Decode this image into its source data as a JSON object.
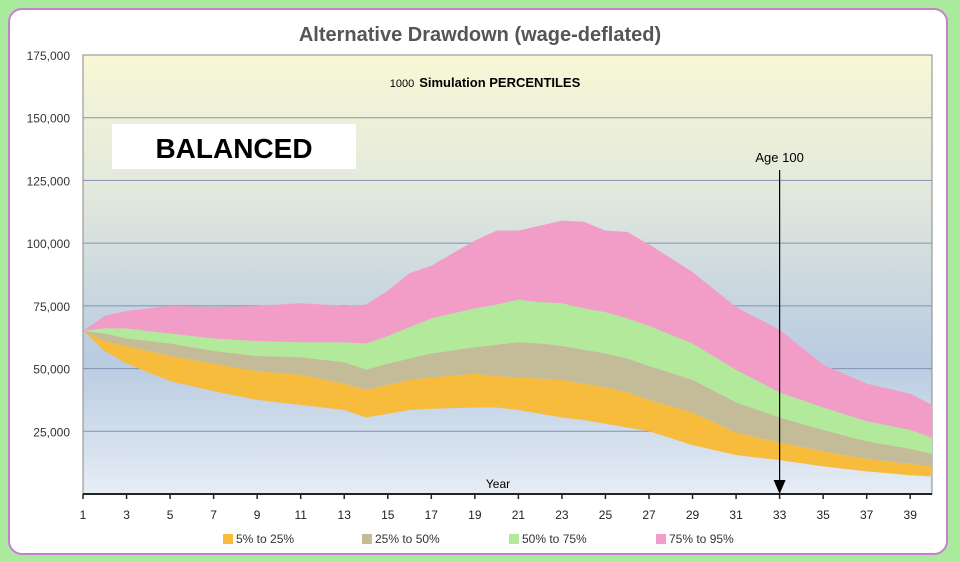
{
  "chart_data": {
    "type": "area",
    "title": "Alternative Drawdown (wage-deflated)",
    "subtitle_count": "1000",
    "subtitle": "Simulation  PERCENTILES",
    "label_box": "BALANCED",
    "xlabel": "Year",
    "ylabel": "",
    "xlim": [
      1,
      40
    ],
    "ylim": [
      0,
      175000
    ],
    "x_ticks": [
      1,
      3,
      5,
      7,
      9,
      11,
      13,
      15,
      17,
      19,
      21,
      23,
      25,
      27,
      29,
      31,
      33,
      35,
      37,
      39
    ],
    "y_ticks": [
      "25,000",
      "50,000",
      "75,000",
      "100,000",
      "125,000",
      "150,000",
      "175,000"
    ],
    "y_tick_values": [
      25000,
      50000,
      75000,
      100000,
      125000,
      150000,
      175000
    ],
    "grid": true,
    "legend_position": "bottom",
    "annotation": {
      "text": "Age 100",
      "x": 33
    },
    "x": [
      1,
      2,
      3,
      5,
      7,
      9,
      11,
      13,
      14,
      15,
      16,
      17,
      19,
      20,
      21,
      22,
      23,
      24,
      25,
      26,
      27,
      29,
      31,
      33,
      35,
      37,
      39,
      40
    ],
    "series": [
      {
        "name": "5% to 25%",
        "color": "#f7bc3c",
        "lower": [
          65000,
          57000,
          52000,
          45000,
          41000,
          37500,
          35500,
          33500,
          30500,
          32000,
          33500,
          34000,
          34500,
          34500,
          33500,
          32000,
          30500,
          29500,
          28000,
          26500,
          25000,
          19500,
          15500,
          13500,
          11000,
          9000,
          7500,
          7000
        ],
        "upper": [
          65000,
          61000,
          59000,
          55000,
          52000,
          49000,
          47500,
          44000,
          41500,
          43500,
          45500,
          46500,
          48000,
          47000,
          46500,
          46000,
          45500,
          44000,
          42500,
          40500,
          37500,
          32500,
          24500,
          20500,
          17000,
          14000,
          12000,
          11000
        ]
      },
      {
        "name": "25% to 50%",
        "color": "#c4bc98",
        "lower": [
          65000,
          61000,
          59000,
          55000,
          52000,
          49000,
          47500,
          44000,
          41500,
          43500,
          45500,
          46500,
          48000,
          47000,
          46500,
          46000,
          45500,
          44000,
          42500,
          40500,
          37500,
          32500,
          24500,
          20500,
          17000,
          14000,
          12000,
          11000
        ],
        "upper": [
          65000,
          64000,
          62000,
          60000,
          57000,
          55000,
          54500,
          52500,
          49500,
          52000,
          54000,
          56000,
          58500,
          59500,
          60500,
          60000,
          59000,
          57500,
          56000,
          54000,
          51000,
          45500,
          36500,
          30500,
          25500,
          21000,
          18000,
          16000
        ]
      },
      {
        "name": "50% to 75%",
        "color": "#b3e99a",
        "lower": [
          65000,
          64000,
          62000,
          60000,
          57000,
          55000,
          54500,
          52500,
          49500,
          52000,
          54000,
          56000,
          58500,
          59500,
          60500,
          60000,
          59000,
          57500,
          56000,
          54000,
          51000,
          45500,
          36500,
          30500,
          25500,
          21000,
          18000,
          16000
        ],
        "upper": [
          65000,
          66000,
          66000,
          64000,
          62000,
          61000,
          60500,
          60500,
          60000,
          63000,
          66500,
          70000,
          74000,
          75500,
          77500,
          76500,
          76000,
          74000,
          72500,
          70000,
          67000,
          60000,
          49500,
          40500,
          34500,
          29000,
          25500,
          22500
        ]
      },
      {
        "name": "75% to 95%",
        "color": "#f19dc8",
        "lower": [
          65000,
          66000,
          66000,
          64000,
          62000,
          61000,
          60500,
          60500,
          60000,
          63000,
          66500,
          70000,
          74000,
          75500,
          77500,
          76500,
          76000,
          74000,
          72500,
          70000,
          67000,
          60000,
          49500,
          40500,
          34500,
          29000,
          25500,
          22500
        ],
        "upper": [
          65000,
          71000,
          73000,
          75000,
          74500,
          75000,
          76000,
          75000,
          75500,
          81000,
          88000,
          91000,
          101000,
          105000,
          105000,
          107000,
          109000,
          108500,
          105000,
          104500,
          99500,
          88500,
          74500,
          65500,
          51500,
          44000,
          40000,
          35500
        ]
      }
    ]
  }
}
